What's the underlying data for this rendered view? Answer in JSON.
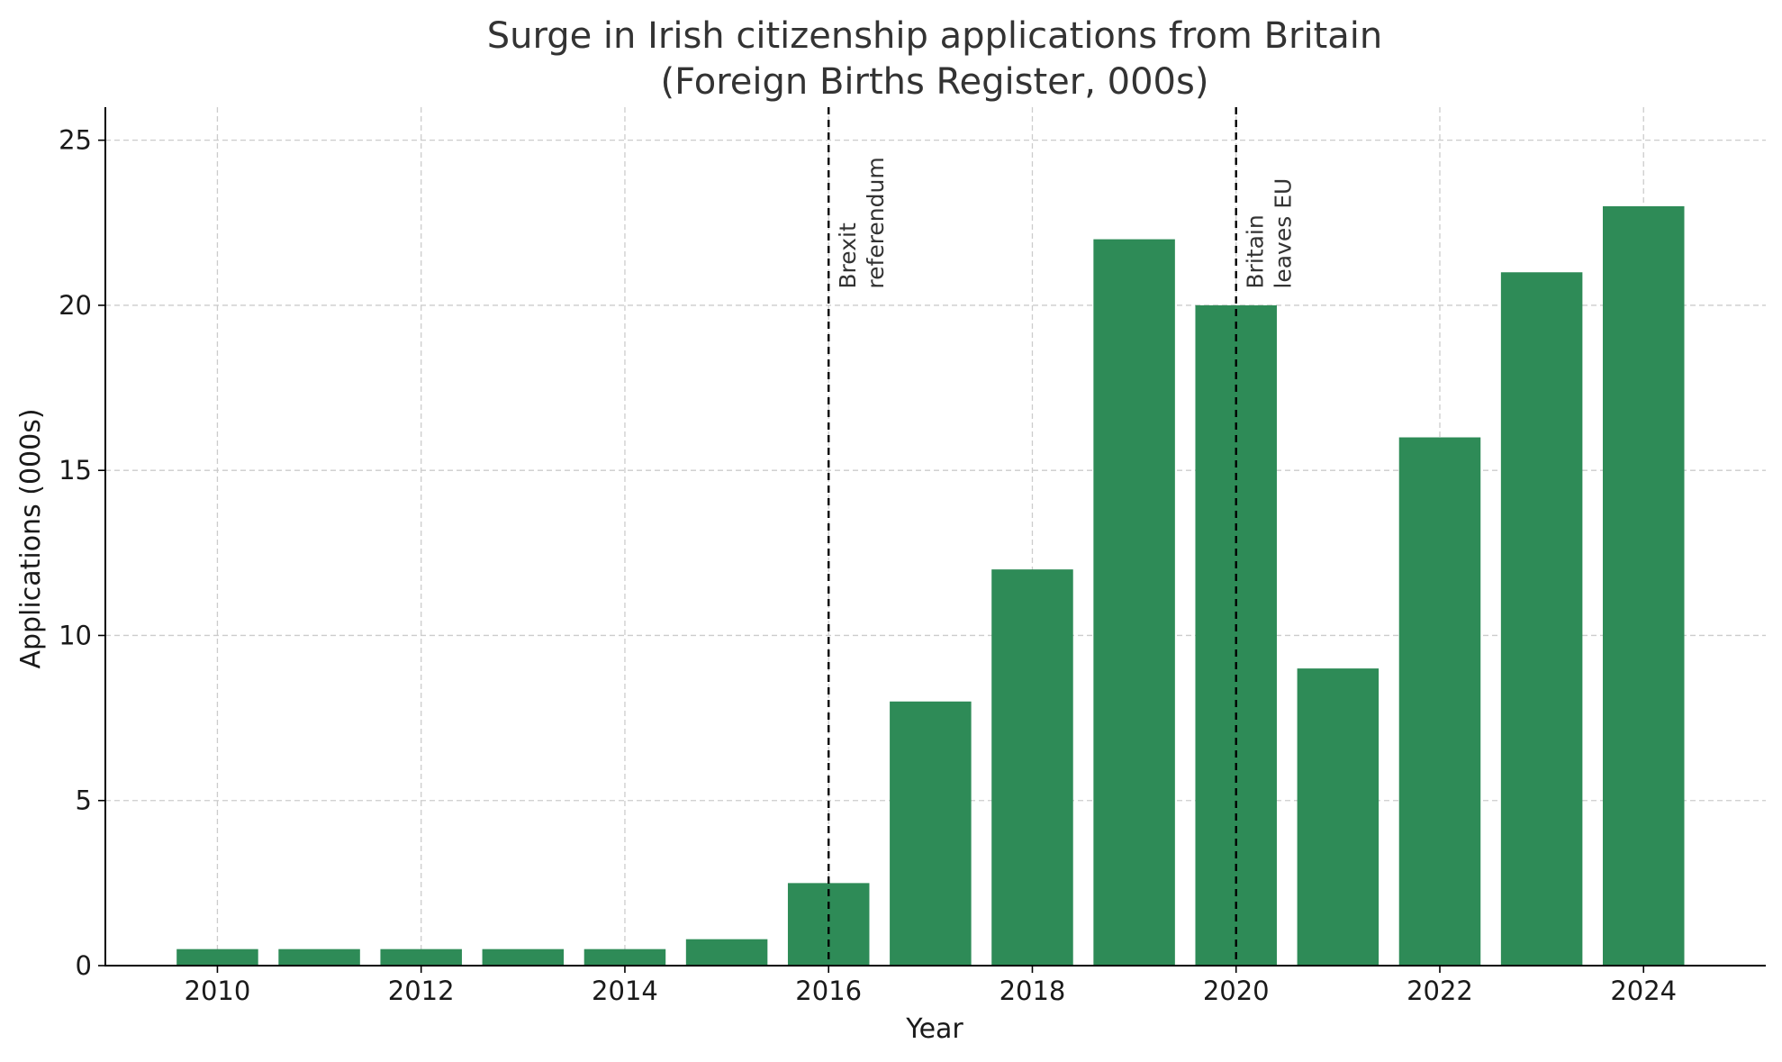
{
  "chart_data": {
    "type": "bar",
    "title": "Surge in Irish citizenship applications from Britain",
    "subtitle": "(Foreign Births Register, 000s)",
    "xlabel": "Year",
    "ylabel": "Applications (000s)",
    "x": [
      2010,
      2011,
      2012,
      2013,
      2014,
      2015,
      2016,
      2017,
      2018,
      2019,
      2020,
      2021,
      2022,
      2023,
      2024
    ],
    "values": [
      0.5,
      0.5,
      0.5,
      0.5,
      0.5,
      0.8,
      2.5,
      8,
      12,
      22,
      20,
      9,
      16,
      21,
      23
    ],
    "xlim": [
      2008.9,
      2025.2
    ],
    "ylim": [
      0,
      26
    ],
    "xticks": [
      2010,
      2012,
      2014,
      2016,
      2018,
      2020,
      2022,
      2024
    ],
    "yticks": [
      0,
      5,
      10,
      15,
      20,
      25
    ],
    "grid": true,
    "bar_color": "#2e8b57",
    "annotations": [
      {
        "x": 2016,
        "lines": [
          "Brexit",
          "referendum"
        ]
      },
      {
        "x": 2020,
        "lines": [
          "Britain",
          "leaves EU"
        ]
      }
    ]
  }
}
